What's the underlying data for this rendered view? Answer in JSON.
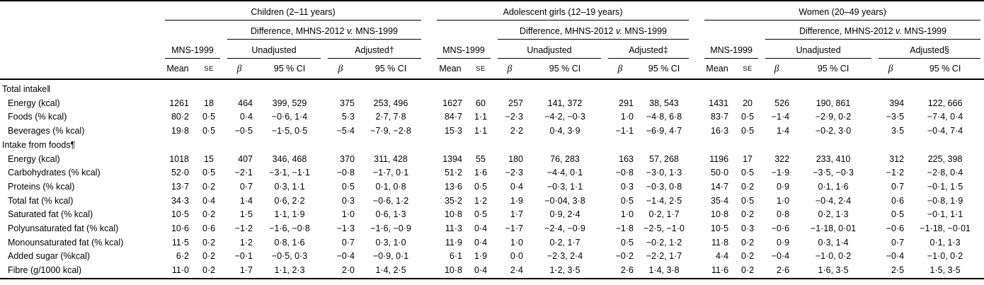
{
  "header": {
    "groups": [
      {
        "title": "Children (2–11 years)",
        "mns": "MNS-1999",
        "unadjusted": "Unadjusted",
        "adjusted": "Adjusted†"
      },
      {
        "title": "Adolescent girls (12–19 years)",
        "mns": "MNS-1999",
        "unadjusted": "Unadjusted",
        "adjusted": "Adjusted‡"
      },
      {
        "title": "Women (20–49 years)",
        "mns": "MNS-1999",
        "unadjusted": "Unadjusted",
        "adjusted": "Adjusted§"
      }
    ],
    "difference": {
      "pre": "Difference, MHNS-2012 ",
      "v": "v.",
      "post": " MNS-1999"
    },
    "colheads": {
      "mean": "Mean",
      "se": "SE",
      "beta": "β",
      "ci": "95 % CI"
    }
  },
  "rows": [
    {
      "label": "Total intake‖",
      "section": true,
      "cells": []
    },
    {
      "label": "Energy (kcal)",
      "section": false,
      "cells": [
        "1261",
        "18",
        "464",
        "399, 529",
        "375",
        "253, 496",
        "1627",
        "60",
        "257",
        "141, 372",
        "291",
        "38, 543",
        "1431",
        "20",
        "526",
        "190, 861",
        "394",
        "122, 666"
      ]
    },
    {
      "label": "Foods (% kcal)",
      "section": false,
      "cells": [
        "80·2",
        "0·5",
        "0·4",
        "−0·6, 1·4",
        "5·3",
        "2·7, 7·8",
        "84·7",
        "1·1",
        "−2·3",
        "−4·2, −0·3",
        "1·0",
        "−4·8, 6·8",
        "83·7",
        "0·5",
        "−1·4",
        "−2·9, 0·2",
        "−3·5",
        "−7·4, 0·4"
      ]
    },
    {
      "label": "Beverages (% kcal)",
      "section": false,
      "cells": [
        "19·8",
        "0·5",
        "−0·5",
        "−1·5, 0·5",
        "−5·4",
        "−7·9, −2·8",
        "15·3",
        "1·1",
        "2·2",
        "0·4, 3·9",
        "−1·1",
        "−6·9, 4·7",
        "16·3",
        "0·5",
        "1·4",
        "−0·2, 3·0",
        "3·5",
        "−0·4, 7·4"
      ]
    },
    {
      "label": "Intake from foods¶",
      "section": true,
      "cells": []
    },
    {
      "label": "Energy (kcal)",
      "section": false,
      "cells": [
        "1018",
        "15",
        "407",
        "346, 468",
        "370",
        "311, 428",
        "1394",
        "55",
        "180",
        "76, 283",
        "163",
        "57, 268",
        "1196",
        "17",
        "322",
        "233, 410",
        "312",
        "225, 398"
      ]
    },
    {
      "label": "Carbohydrates (% kcal)",
      "section": false,
      "cells": [
        "52·0",
        "0·5",
        "−2·1",
        "−3·1, −1·1",
        "−0·8",
        "−1·7, 0·1",
        "51·2",
        "1·6",
        "−2·3",
        "−4·4, 0·1",
        "−0·8",
        "−3·0, 1·3",
        "50·0",
        "0·5",
        "−1·9",
        "−3·5, −0·3",
        "−1·2",
        "−2·8, 0·4"
      ]
    },
    {
      "label": "Proteins (% kcal)",
      "section": false,
      "cells": [
        "13·7",
        "0·2",
        "0·7",
        "0·3, 1·1",
        "0·5",
        "0·1, 0·8",
        "13·6",
        "0·5",
        "0·4",
        "−0·3, 1·1",
        "0·3",
        "−0·3, 0·8",
        "14·7",
        "0·2",
        "0·9",
        "0·1, 1·6",
        "0·7",
        "−0·1, 1·5"
      ]
    },
    {
      "label": "Total fat (% kcal)",
      "section": false,
      "cells": [
        "34·3",
        "0·4",
        "1·4",
        "0·6, 2·2",
        "0·3",
        "−0·6, 1·2",
        "35·2",
        "1·2",
        "1·9",
        "−0·04, 3·8",
        "0·5",
        "−1·4, 2·5",
        "35·4",
        "0·5",
        "1·0",
        "−0·4, 2·4",
        "0·6",
        "−0·8, 1·9"
      ]
    },
    {
      "label": "Saturated fat (% kcal)",
      "section": false,
      "cells": [
        "10·5",
        "0·2",
        "1·5",
        "1·1, 1·9",
        "1·0",
        "0·6, 1·3",
        "10·8",
        "0·5",
        "1·7",
        "0·9, 2·4",
        "1·0",
        "0·2, 1·7",
        "10·8",
        "0·2",
        "0·8",
        "0·2, 1·3",
        "0·5",
        "−0·1, 1·1"
      ]
    },
    {
      "label": "Polyunsaturated fat (% kcal)",
      "section": false,
      "cells": [
        "10·6",
        "0·6",
        "−1·2",
        "−1·6, −0·8",
        "−1·3",
        "−1·6, −0·9",
        "11·3",
        "0·4",
        "−1·7",
        "−2·4, −0·9",
        "−1·8",
        "−2·5, −1·0",
        "10·5",
        "0·3",
        "−0·6",
        "−1·18, 0·01",
        "−0·6",
        "−1·18, −0·01"
      ]
    },
    {
      "label": "Monounsaturated fat (% kcal)",
      "section": false,
      "cells": [
        "11·5",
        "0·2",
        "1·2",
        "0·8, 1·6",
        "0·7",
        "0·3, 1·0",
        "11·9",
        "0·4",
        "1·0",
        "0·2, 1·7",
        "0·5",
        "−0·2, 1·2",
        "11·8",
        "0·2",
        "0·9",
        "0·3, 1·4",
        "0·7",
        "0·1, 1·3"
      ]
    },
    {
      "label": "Added sugar (%kcal)",
      "section": false,
      "cells": [
        "6·2",
        "0·2",
        "−0·1",
        "−0·5, 0·3",
        "−0·4",
        "−0·9, 0·1",
        "6·1",
        "1·9",
        "0·0",
        "−2·3, 2·4",
        "−0·2",
        "−2·2, 1·7",
        "4·4",
        "0·2",
        "−0·4",
        "−1·0, 0·2",
        "−0·4",
        "−1·0, 0·2"
      ]
    },
    {
      "label": "Fibre (g/1000 kcal)",
      "section": false,
      "cells": [
        "11·0",
        "0·2",
        "1·7",
        "1·1, 2·3",
        "2·0",
        "1·4, 2·5",
        "10·8",
        "0·4",
        "2·4",
        "1·2, 3·5",
        "2·6",
        "1·4, 3·8",
        "11·6",
        "0·2",
        "2·6",
        "1·6, 3·5",
        "2·5",
        "1·5, 3·5"
      ]
    }
  ]
}
